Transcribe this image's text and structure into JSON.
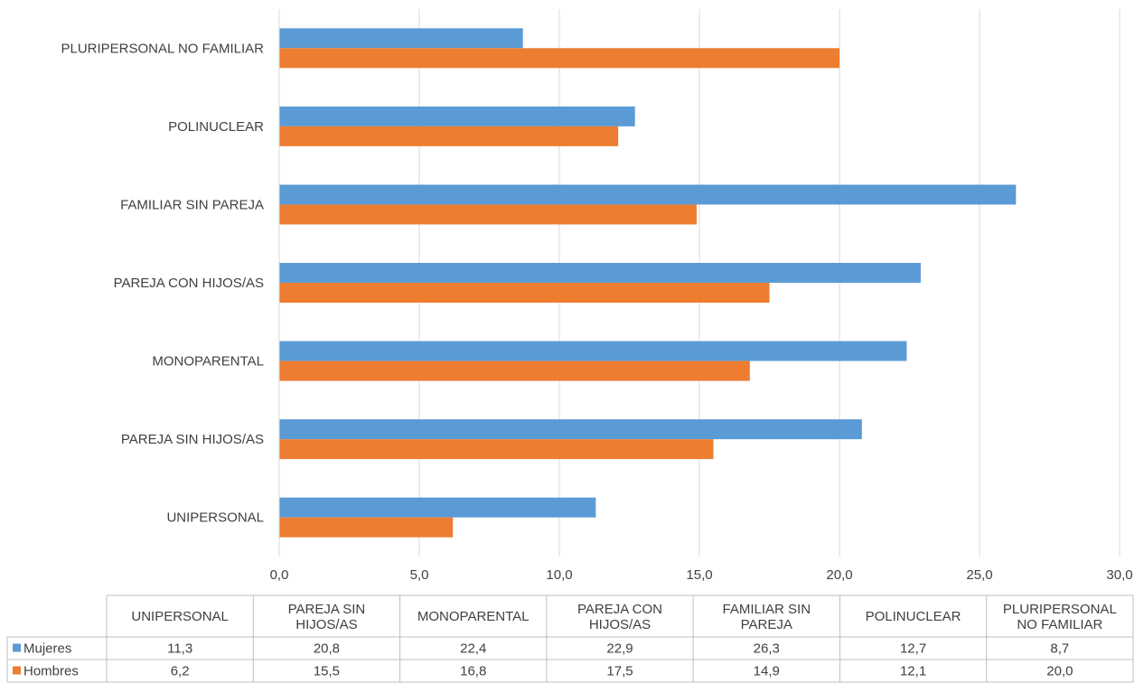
{
  "chart_data": {
    "type": "bar",
    "orientation": "horizontal",
    "categories": [
      "UNIPERSONAL",
      "PAREJA SIN HIJOS/AS",
      "MONOPARENTAL",
      "PAREJA CON HIJOS/AS",
      "FAMILIAR SIN PAREJA",
      "POLINUCLEAR",
      "PLURIPERSONAL NO FAMILIAR"
    ],
    "table_headers": [
      [
        "UNIPERSONAL"
      ],
      [
        "PAREJA SIN",
        "HIJOS/AS"
      ],
      [
        "MONOPARENTAL"
      ],
      [
        "PAREJA CON",
        "HIJOS/AS"
      ],
      [
        "FAMILIAR SIN",
        "PAREJA"
      ],
      [
        "POLINUCLEAR"
      ],
      [
        "PLURIPERSONAL",
        "NO FAMILIAR"
      ]
    ],
    "series": [
      {
        "name": "Mujeres",
        "color": "#5B9BD5",
        "values": [
          11.3,
          20.8,
          22.4,
          22.9,
          26.3,
          12.7,
          8.7
        ],
        "display": [
          "11,3",
          "20,8",
          "22,4",
          "22,9",
          "26,3",
          "12,7",
          "8,7"
        ]
      },
      {
        "name": "Hombres",
        "color": "#ED7D31",
        "values": [
          6.2,
          15.5,
          16.8,
          17.5,
          14.9,
          12.1,
          20.0
        ],
        "display": [
          "6,2",
          "15,5",
          "16,8",
          "17,5",
          "14,9",
          "12,1",
          "20,0"
        ]
      }
    ],
    "xlim": [
      0,
      30
    ],
    "x_ticks": [
      0,
      5,
      10,
      15,
      20,
      25,
      30
    ],
    "x_tick_labels": [
      "0,0",
      "5,0",
      "10,0",
      "15,0",
      "20,0",
      "25,0",
      "30,0"
    ],
    "grid": true,
    "legend": "data-table",
    "title": "",
    "xlabel": "",
    "ylabel": ""
  }
}
